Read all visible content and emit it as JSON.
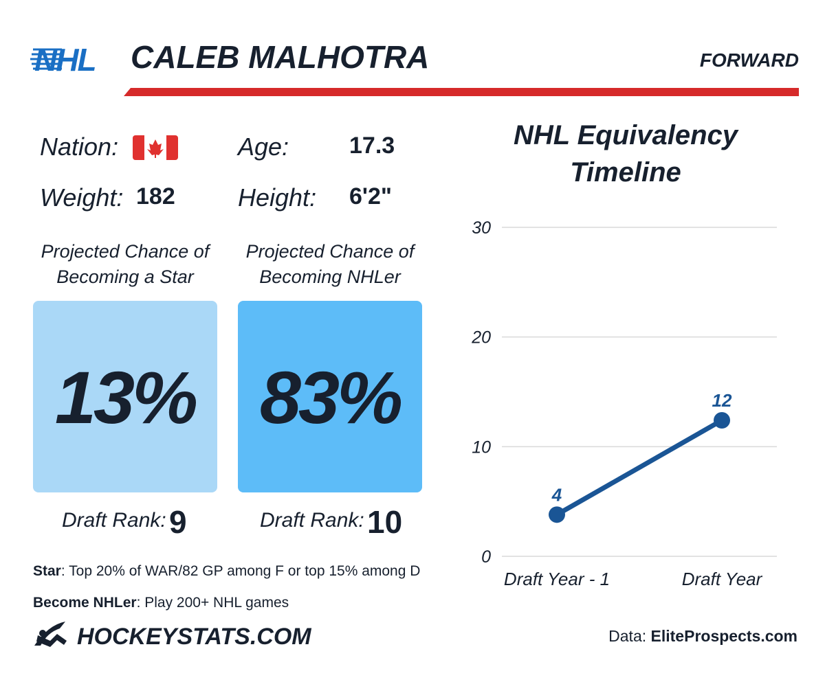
{
  "header": {
    "logo": "NHL",
    "name": "CALEB MALHOTRA",
    "position": "FORWARD"
  },
  "bio": {
    "nation_label": "Nation:",
    "age_label": "Age:",
    "age": "17.3",
    "weight_label": "Weight:",
    "weight": "182",
    "height_label": "Height:",
    "height": "6'2\""
  },
  "projections": [
    {
      "caption": "Projected Chance of Becoming a Star",
      "value": "13%",
      "rank_label": "Draft Rank:",
      "rank": "9"
    },
    {
      "caption": "Projected Chance of Becoming NHLer",
      "value": "83%",
      "rank_label": "Draft Rank:",
      "rank": "10"
    }
  ],
  "definitions": [
    {
      "term": "Star",
      "text": ": Top 20% of WAR/82 GP among F or top 15% among D"
    },
    {
      "term": "Become NHLer",
      "text": ": Play 200+ NHL games"
    }
  ],
  "footer": {
    "brand": "HOCKEYSTATS.COM",
    "source_label": "Data: ",
    "source": "EliteProspects.com"
  },
  "chart_data": {
    "type": "line",
    "title": "NHL Equivalency Timeline",
    "categories": [
      "Draft Year - 1",
      "Draft Year"
    ],
    "values": [
      3.8,
      12.4
    ],
    "value_labels": [
      "4",
      "12"
    ],
    "color": "#1a5595",
    "ylim": [
      0,
      30
    ],
    "yticks": [
      0,
      10,
      20,
      30
    ],
    "grid": true
  }
}
